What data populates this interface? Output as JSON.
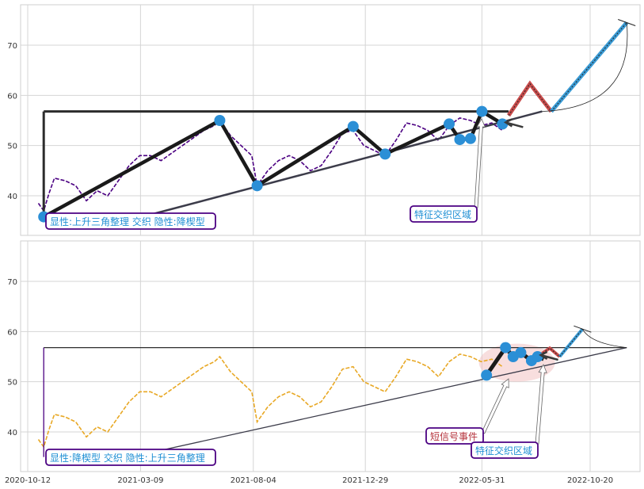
{
  "chart_data": [
    {
      "type": "line",
      "panel": "top",
      "ylim": [
        32,
        78
      ],
      "yticks": [
        40,
        50,
        60,
        70
      ],
      "grid": true,
      "price_color": "#4b0082",
      "price_style": "dashed",
      "price": [
        [
          "2020-10-26",
          38.5
        ],
        [
          "2020-11-02",
          37.0
        ],
        [
          "2020-11-09",
          40.5
        ],
        [
          "2020-11-16",
          43.5
        ],
        [
          "2020-11-30",
          43.0
        ],
        [
          "2020-12-14",
          42.0
        ],
        [
          "2020-12-28",
          39.0
        ],
        [
          "2021-01-11",
          41.0
        ],
        [
          "2021-01-25",
          40.0
        ],
        [
          "2021-02-08",
          43.0
        ],
        [
          "2021-02-22",
          46.0
        ],
        [
          "2021-03-08",
          48.0
        ],
        [
          "2021-03-22",
          48.0
        ],
        [
          "2021-04-05",
          47.0
        ],
        [
          "2021-04-19",
          48.5
        ],
        [
          "2021-05-03",
          50.0
        ],
        [
          "2021-05-17",
          51.5
        ],
        [
          "2021-05-31",
          53.0
        ],
        [
          "2021-06-14",
          54.0
        ],
        [
          "2021-06-21",
          55.0
        ],
        [
          "2021-07-05",
          52.0
        ],
        [
          "2021-07-19",
          50.0
        ],
        [
          "2021-08-02",
          48.0
        ],
        [
          "2021-08-09",
          42.0
        ],
        [
          "2021-08-23",
          45.0
        ],
        [
          "2021-09-06",
          47.0
        ],
        [
          "2021-09-20",
          48.0
        ],
        [
          "2021-10-04",
          47.0
        ],
        [
          "2021-10-18",
          45.0
        ],
        [
          "2021-11-01",
          46.0
        ],
        [
          "2021-11-15",
          49.0
        ],
        [
          "2021-11-29",
          52.5
        ],
        [
          "2021-12-13",
          53.0
        ],
        [
          "2021-12-27",
          50.0
        ],
        [
          "2022-01-10",
          49.0
        ],
        [
          "2022-01-24",
          48.0
        ],
        [
          "2022-02-07",
          51.0
        ],
        [
          "2022-02-21",
          54.5
        ],
        [
          "2022-03-07",
          54.0
        ],
        [
          "2022-03-21",
          53.0
        ],
        [
          "2022-04-04",
          51.0
        ],
        [
          "2022-04-18",
          54.0
        ],
        [
          "2022-05-02",
          55.5
        ],
        [
          "2022-05-16",
          55.0
        ],
        [
          "2022-05-30",
          54.0
        ],
        [
          "2022-06-13",
          54.5
        ],
        [
          "2022-06-27",
          53.0
        ]
      ],
      "pattern_lines": [
        {
          "role": "resistance",
          "points": [
            [
              "2020-11-02",
              56.8
            ],
            [
              "2022-07-05",
              56.8
            ]
          ]
        },
        {
          "role": "vertical",
          "points": [
            [
              "2020-11-02",
              35.8
            ],
            [
              "2020-11-02",
              56.8
            ]
          ]
        },
        {
          "role": "support",
          "points": [
            [
              "2021-01-25",
              34.0
            ],
            [
              "2022-08-18",
              56.8
            ]
          ]
        },
        {
          "role": "zigzag",
          "points": [
            [
              "2020-11-02",
              35.8
            ],
            [
              "2021-06-21",
              55.0
            ],
            [
              "2021-08-09",
              42.0
            ],
            [
              "2021-12-13",
              53.8
            ],
            [
              "2022-01-24",
              48.3
            ],
            [
              "2022-04-18",
              54.3
            ],
            [
              "2022-05-02",
              51.2
            ],
            [
              "2022-05-16",
              51.4
            ],
            [
              "2022-05-31",
              56.8
            ],
            [
              "2022-06-27",
              54.3
            ]
          ]
        }
      ],
      "markers": [
        [
          "2020-11-02",
          35.8
        ],
        [
          "2021-06-21",
          55.0
        ],
        [
          "2021-08-09",
          42.0
        ],
        [
          "2021-12-13",
          53.8
        ],
        [
          "2022-01-24",
          48.3
        ],
        [
          "2022-04-18",
          54.3
        ],
        [
          "2022-05-02",
          51.2
        ],
        [
          "2022-05-16",
          51.4
        ],
        [
          "2022-05-31",
          56.8
        ],
        [
          "2022-06-27",
          54.3
        ]
      ],
      "projection": {
        "red_peak": [
          [
            "2022-07-05",
            56.0
          ],
          [
            "2022-08-02",
            62.3
          ],
          [
            "2022-08-30",
            56.8
          ]
        ],
        "blue_target": [
          [
            "2022-08-30",
            56.8
          ],
          [
            "2022-12-07",
            74.5
          ]
        ]
      },
      "annotations": [
        {
          "text": "显性:上升三角整理 交织 隐性:降楔型",
          "color": "#1f8fd4"
        },
        {
          "text": "特征交织区域",
          "color": "#1f8fd4"
        }
      ]
    },
    {
      "type": "line",
      "panel": "bottom",
      "ylim": [
        32,
        78
      ],
      "yticks": [
        40,
        50,
        60,
        70
      ],
      "grid": true,
      "xticks": [
        "2020-10-12",
        "2021-03-09",
        "2021-08-04",
        "2021-12-29",
        "2022-05-31",
        "2022-10-20"
      ],
      "price_color": "#e8a825",
      "price_style": "dashed",
      "price": [
        [
          "2020-10-26",
          38.5
        ],
        [
          "2020-11-02",
          37.0
        ],
        [
          "2020-11-09",
          40.5
        ],
        [
          "2020-11-16",
          43.5
        ],
        [
          "2020-11-30",
          43.0
        ],
        [
          "2020-12-14",
          42.0
        ],
        [
          "2020-12-28",
          39.0
        ],
        [
          "2021-01-11",
          41.0
        ],
        [
          "2021-01-25",
          40.0
        ],
        [
          "2021-02-08",
          43.0
        ],
        [
          "2021-02-22",
          46.0
        ],
        [
          "2021-03-08",
          48.0
        ],
        [
          "2021-03-22",
          48.0
        ],
        [
          "2021-04-05",
          47.0
        ],
        [
          "2021-04-19",
          48.5
        ],
        [
          "2021-05-03",
          50.0
        ],
        [
          "2021-05-17",
          51.5
        ],
        [
          "2021-05-31",
          53.0
        ],
        [
          "2021-06-14",
          54.0
        ],
        [
          "2021-06-21",
          55.0
        ],
        [
          "2021-07-05",
          52.0
        ],
        [
          "2021-07-19",
          50.0
        ],
        [
          "2021-08-02",
          48.0
        ],
        [
          "2021-08-09",
          42.0
        ],
        [
          "2021-08-23",
          45.0
        ],
        [
          "2021-09-06",
          47.0
        ],
        [
          "2021-09-20",
          48.0
        ],
        [
          "2021-10-04",
          47.0
        ],
        [
          "2021-10-18",
          45.0
        ],
        [
          "2021-11-01",
          46.0
        ],
        [
          "2021-11-15",
          49.0
        ],
        [
          "2021-11-29",
          52.5
        ],
        [
          "2021-12-13",
          53.0
        ],
        [
          "2021-12-27",
          50.0
        ],
        [
          "2022-01-10",
          49.0
        ],
        [
          "2022-01-24",
          48.0
        ],
        [
          "2022-02-07",
          51.0
        ],
        [
          "2022-02-21",
          54.5
        ],
        [
          "2022-03-07",
          54.0
        ],
        [
          "2022-03-21",
          53.0
        ],
        [
          "2022-04-04",
          51.0
        ],
        [
          "2022-04-18",
          54.0
        ],
        [
          "2022-05-02",
          55.5
        ],
        [
          "2022-05-16",
          55.0
        ],
        [
          "2022-05-30",
          54.0
        ],
        [
          "2022-06-13",
          54.5
        ],
        [
          "2022-06-27",
          53.0
        ]
      ],
      "pattern_lines": [
        {
          "role": "resistance",
          "points": [
            [
              "2020-11-02",
              56.8
            ],
            [
              "2022-12-07",
              56.8
            ]
          ]
        },
        {
          "role": "vertical",
          "points": [
            [
              "2020-11-02",
              35.0
            ],
            [
              "2020-11-02",
              56.8
            ]
          ]
        },
        {
          "role": "support",
          "points": [
            [
              "2021-01-25",
              34.0
            ],
            [
              "2022-12-07",
              56.8
            ]
          ]
        },
        {
          "role": "zigzag",
          "points": [
            [
              "2022-06-06",
              51.3
            ],
            [
              "2022-07-01",
              56.8
            ],
            [
              "2022-07-11",
              55.0
            ],
            [
              "2022-07-21",
              55.8
            ],
            [
              "2022-08-04",
              54.2
            ],
            [
              "2022-08-12",
              55.0
            ],
            [
              "2022-08-20",
              54.5
            ]
          ]
        }
      ],
      "markers": [
        [
          "2022-06-06",
          51.3
        ],
        [
          "2022-07-01",
          56.8
        ],
        [
          "2022-07-11",
          55.0
        ],
        [
          "2022-07-21",
          55.8
        ],
        [
          "2022-08-04",
          54.2
        ],
        [
          "2022-08-12",
          55.0
        ]
      ],
      "highlight_zone": {
        "center": [
          "2022-07-16",
          53.8
        ],
        "color": "#f2c2c2"
      },
      "projection": {
        "red_peak": [
          [
            "2022-08-12",
            55.0
          ],
          [
            "2022-08-28",
            56.7
          ],
          [
            "2022-09-10",
            55.0
          ]
        ],
        "blue_target": [
          [
            "2022-09-10",
            55.0
          ],
          [
            "2022-10-10",
            60.5
          ]
        ]
      },
      "annotations": [
        {
          "text": "显性:降楔型 交织 隐性:上升三角整理",
          "color": "#1f8fd4"
        },
        {
          "text": "短信号事件",
          "color": "#b5323b"
        },
        {
          "text": "特征交织区域",
          "color": "#1f8fd4"
        }
      ]
    }
  ]
}
